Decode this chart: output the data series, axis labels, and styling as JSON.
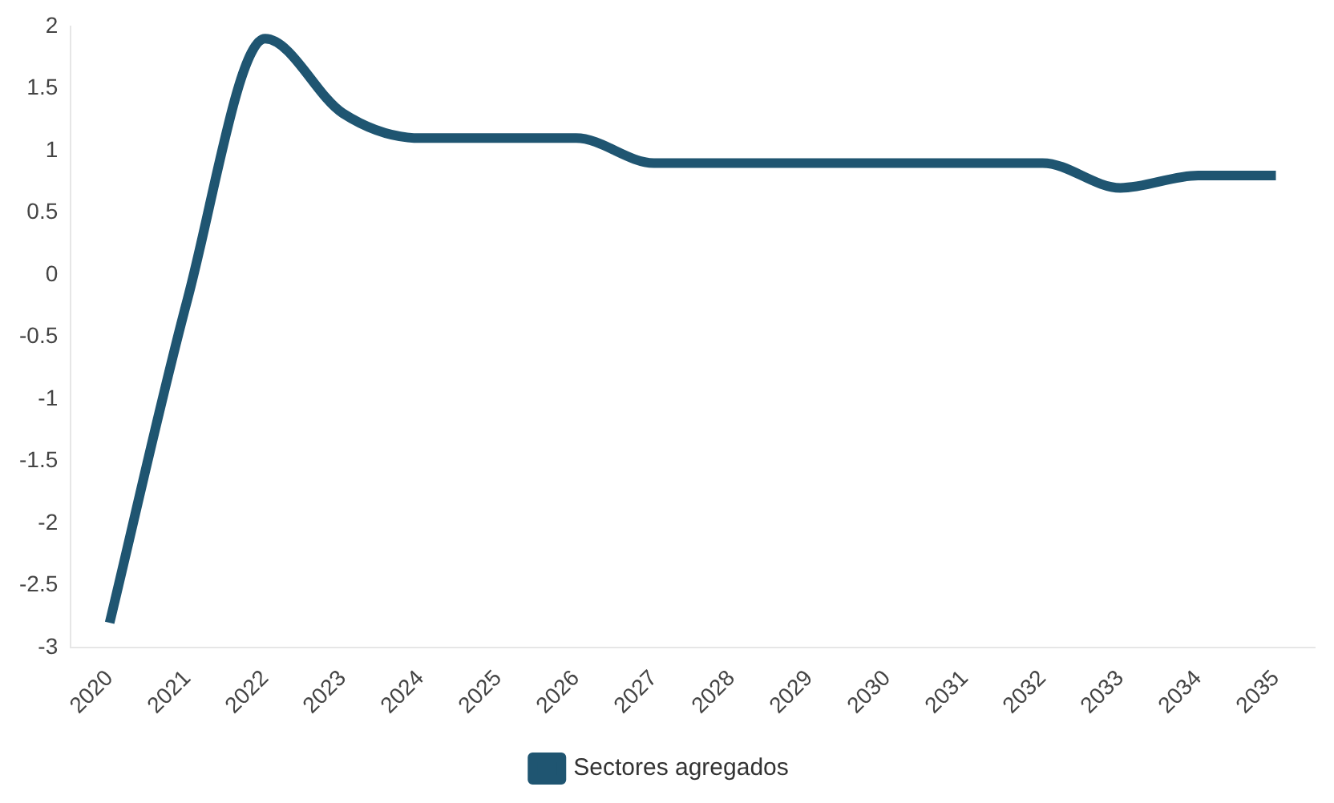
{
  "chart_data": {
    "type": "line",
    "categories": [
      "2020",
      "2021",
      "2022",
      "2023",
      "2024",
      "2025",
      "2026",
      "2027",
      "2028",
      "2029",
      "2030",
      "2031",
      "2032",
      "2033",
      "2034",
      "2035"
    ],
    "series": [
      {
        "name": "Sectores agregados",
        "color": "#1f5571",
        "values": [
          -2.8,
          -0.2,
          1.9,
          1.3,
          1.1,
          1.1,
          1.1,
          0.9,
          0.9,
          0.9,
          0.9,
          0.9,
          0.9,
          0.7,
          0.8,
          0.8
        ]
      }
    ],
    "ylim": [
      -3,
      2
    ],
    "yticks": [
      -3,
      -2.5,
      -2,
      -1.5,
      -1,
      -0.5,
      0,
      0.5,
      1,
      1.5,
      2
    ],
    "grid": false,
    "legend": "bottom",
    "marker": "none",
    "line_style": "solid"
  }
}
